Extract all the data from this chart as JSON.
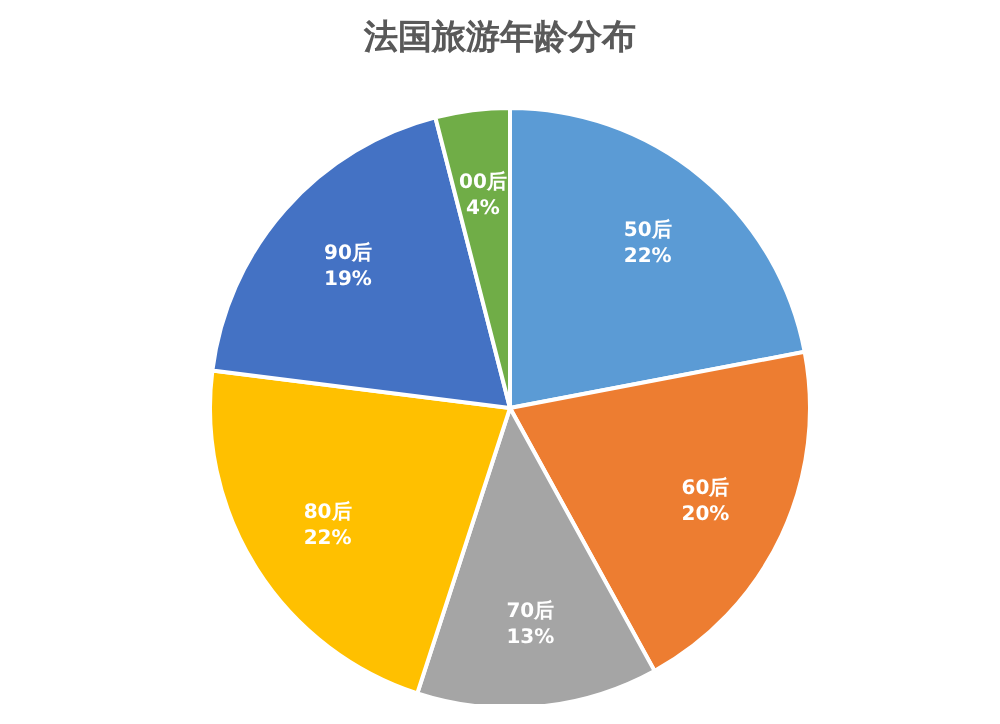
{
  "chart_data": {
    "type": "pie",
    "title": "法国旅游年龄分布",
    "categories": [
      "50后",
      "60后",
      "70后",
      "80后",
      "90后",
      "00后"
    ],
    "values": [
      22,
      20,
      13,
      22,
      19,
      4
    ],
    "value_labels": [
      "22%",
      "20%",
      "13%",
      "22%",
      "19%",
      "4%"
    ],
    "colors": [
      "#5b9bd5",
      "#ed7d31",
      "#a5a5a5",
      "#ffc000",
      "#4472c4",
      "#70ad47"
    ]
  }
}
